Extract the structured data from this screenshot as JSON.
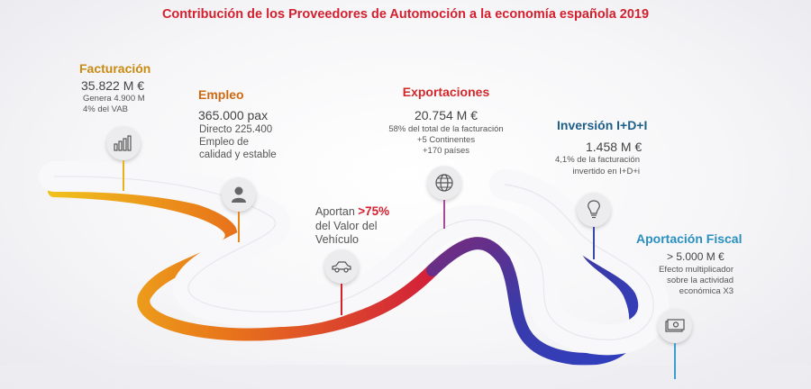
{
  "title": "Contribución de los Proveedores de Automoción a la economía española 2019",
  "facturacion": {
    "heading": "Facturación",
    "value": "35.822 M €",
    "line1": "Genera 4.900 M",
    "line2": "4% del VAB",
    "icon": "bar-chart-icon"
  },
  "empleo": {
    "heading": "Empleo",
    "value": "365.000 pax",
    "line1": "Directo 225.400",
    "line2": "Empleo de",
    "line3": "calidad y estable",
    "icon": "person-icon"
  },
  "vehiculo": {
    "prefix": "Aportan ",
    "highlight": ">75%",
    "line2": "del Valor del",
    "line3": "Vehículo",
    "icon": "car-icon"
  },
  "exportaciones": {
    "heading": "Exportaciones",
    "value": "20.754 M €",
    "line1": "58% del total de la facturación",
    "line2": "+5 Continentes",
    "line3": "+170 países",
    "icon": "globe-icon"
  },
  "inversion": {
    "heading": "Inversión I+D+I",
    "value": "1.458 M €",
    "line1": "4,1% de la facturación",
    "line2": "invertido en I+D+i",
    "icon": "lightbulb-icon"
  },
  "fiscal": {
    "heading": "Aportación Fiscal",
    "value": "> 5.000 M €",
    "line1": "Efecto multiplicador",
    "line2": "sobre la actividad",
    "line3": "económica X3",
    "icon": "money-icon"
  },
  "colors": {
    "title": "#d4202e",
    "facturacion": "#c98a10",
    "empleo": "#d06a12",
    "exportaciones": "#d0282b",
    "inversion": "#1e5f8a",
    "fiscal": "#2a8fbf",
    "highlight": "#d4202e"
  }
}
